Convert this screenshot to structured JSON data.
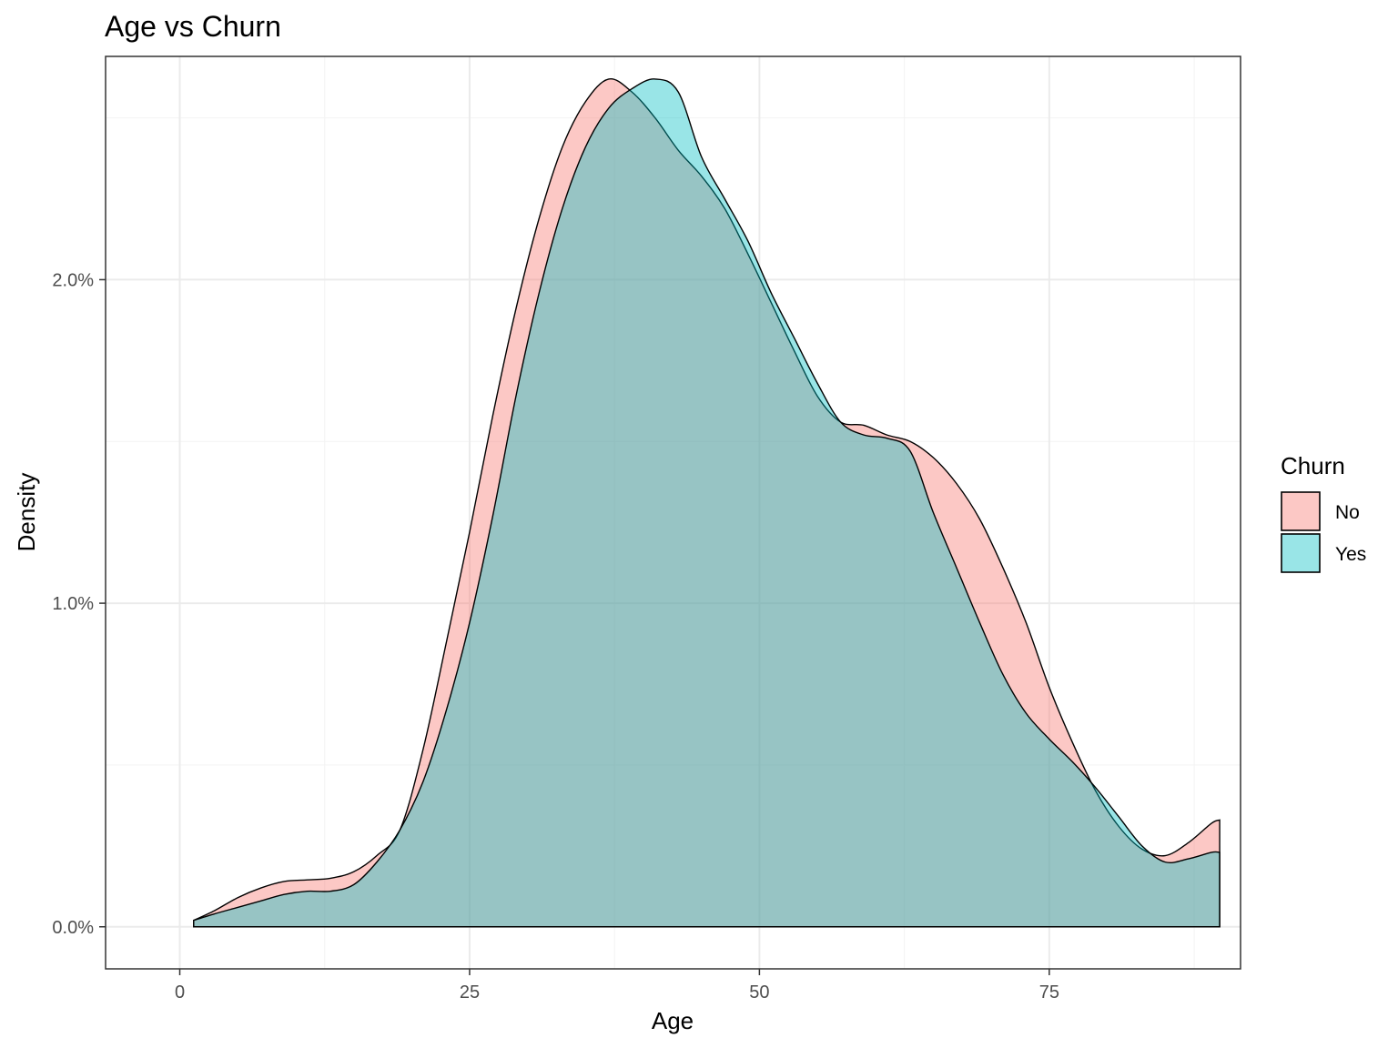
{
  "chart_data": {
    "type": "area",
    "title": "Age vs Churn",
    "xlabel": "Age",
    "ylabel": "Density",
    "xlim": [
      -6.4,
      91.5
    ],
    "ylim": [
      -0.0013,
      0.0269
    ],
    "x_ticks": [
      0,
      25,
      50,
      75
    ],
    "x_tick_labels": [
      "0",
      "25",
      "50",
      "75"
    ],
    "y_ticks": [
      0.0,
      0.01,
      0.02
    ],
    "y_tick_labels": [
      "0.0%",
      "1.0%",
      "2.0%"
    ],
    "grid": true,
    "legend": {
      "title": "Churn",
      "position": "right",
      "entries": [
        {
          "label": "No",
          "color": "#F8766D"
        },
        {
          "label": "Yes",
          "color": "#00BFC4"
        }
      ]
    },
    "series": [
      {
        "name": "No",
        "color": "#F8766D",
        "points": [
          [
            1.2,
            0.0002
          ],
          [
            3,
            0.0005
          ],
          [
            5,
            0.0009
          ],
          [
            7,
            0.0012
          ],
          [
            9,
            0.0014
          ],
          [
            11,
            0.00145
          ],
          [
            13,
            0.0015
          ],
          [
            15,
            0.0017
          ],
          [
            17,
            0.0022
          ],
          [
            19,
            0.003
          ],
          [
            21,
            0.0055
          ],
          [
            23,
            0.0088
          ],
          [
            25,
            0.0122
          ],
          [
            27,
            0.0158
          ],
          [
            29,
            0.0191
          ],
          [
            31,
            0.0219
          ],
          [
            33,
            0.0241
          ],
          [
            35,
            0.0255
          ],
          [
            37,
            0.0262
          ],
          [
            39,
            0.0258
          ],
          [
            41,
            0.025
          ],
          [
            43,
            0.024
          ],
          [
            45,
            0.0232
          ],
          [
            47,
            0.0222
          ],
          [
            49,
            0.0208
          ],
          [
            51,
            0.0193
          ],
          [
            53,
            0.0178
          ],
          [
            55,
            0.0164
          ],
          [
            57,
            0.0156
          ],
          [
            59,
            0.0155
          ],
          [
            61,
            0.0152
          ],
          [
            63,
            0.015
          ],
          [
            65,
            0.0145
          ],
          [
            67,
            0.0137
          ],
          [
            69,
            0.0126
          ],
          [
            71,
            0.0111
          ],
          [
            73,
            0.0094
          ],
          [
            75,
            0.0074
          ],
          [
            77,
            0.0057
          ],
          [
            79,
            0.0042
          ],
          [
            81,
            0.0031
          ],
          [
            83,
            0.0024
          ],
          [
            85,
            0.0022
          ],
          [
            87,
            0.0026
          ],
          [
            89,
            0.0032
          ],
          [
            89.7,
            0.0033
          ]
        ]
      },
      {
        "name": "Yes",
        "color": "#00BFC4",
        "points": [
          [
            1.2,
            0.0002
          ],
          [
            3,
            0.0004
          ],
          [
            5,
            0.0006
          ],
          [
            7,
            0.0008
          ],
          [
            9,
            0.001
          ],
          [
            11,
            0.0011
          ],
          [
            13,
            0.0011
          ],
          [
            15,
            0.0013
          ],
          [
            17,
            0.002
          ],
          [
            19,
            0.003
          ],
          [
            21,
            0.0045
          ],
          [
            23,
            0.0067
          ],
          [
            25,
            0.0094
          ],
          [
            27,
            0.0127
          ],
          [
            29,
            0.0164
          ],
          [
            31,
            0.0196
          ],
          [
            33,
            0.0222
          ],
          [
            35,
            0.0241
          ],
          [
            37,
            0.0253
          ],
          [
            39,
            0.0259
          ],
          [
            41,
            0.0262
          ],
          [
            43,
            0.0258
          ],
          [
            45,
            0.0238
          ],
          [
            47,
            0.0225
          ],
          [
            49,
            0.0212
          ],
          [
            51,
            0.0196
          ],
          [
            53,
            0.0182
          ],
          [
            55,
            0.0168
          ],
          [
            57,
            0.0156
          ],
          [
            59,
            0.0152
          ],
          [
            61,
            0.0151
          ],
          [
            63,
            0.0147
          ],
          [
            65,
            0.0128
          ],
          [
            67,
            0.0111
          ],
          [
            69,
            0.0094
          ],
          [
            71,
            0.0078
          ],
          [
            73,
            0.0066
          ],
          [
            75,
            0.0058
          ],
          [
            77,
            0.0051
          ],
          [
            79,
            0.0043
          ],
          [
            81,
            0.0034
          ],
          [
            83,
            0.0025
          ],
          [
            85,
            0.002
          ],
          [
            87,
            0.0021
          ],
          [
            89,
            0.0023
          ],
          [
            89.7,
            0.0023
          ]
        ]
      }
    ]
  }
}
